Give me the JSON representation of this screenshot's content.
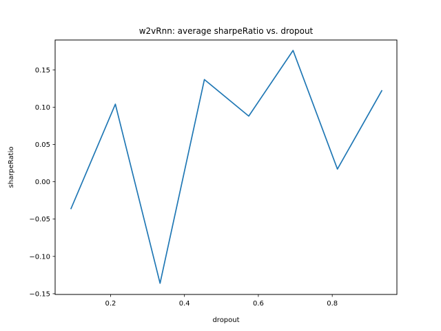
{
  "chart_data": {
    "type": "line",
    "title": "w2vRnn: average sharpeRatio vs. dropout",
    "xlabel": "dropout",
    "ylabel": "sharpeRatio",
    "xlim": [
      0.05,
      0.975
    ],
    "ylim": [
      -0.151,
      0.19
    ],
    "xticks": [
      0.2,
      0.4,
      0.6,
      0.8
    ],
    "xtick_labels": [
      "0.2",
      "0.4",
      "0.6",
      "0.8"
    ],
    "yticks": [
      -0.15,
      -0.1,
      -0.05,
      0.0,
      0.05,
      0.1,
      0.15
    ],
    "ytick_labels": [
      "−0.15",
      "−0.10",
      "−0.05",
      "0.00",
      "0.05",
      "0.10",
      "0.15"
    ],
    "grid": false,
    "series": [
      {
        "color": "#1f77b4",
        "x": [
          0.093,
          0.213,
          0.334,
          0.454,
          0.574,
          0.694,
          0.814,
          0.934
        ],
        "y": [
          -0.036,
          0.104,
          -0.136,
          0.137,
          0.088,
          0.176,
          0.017,
          0.122
        ]
      }
    ]
  }
}
